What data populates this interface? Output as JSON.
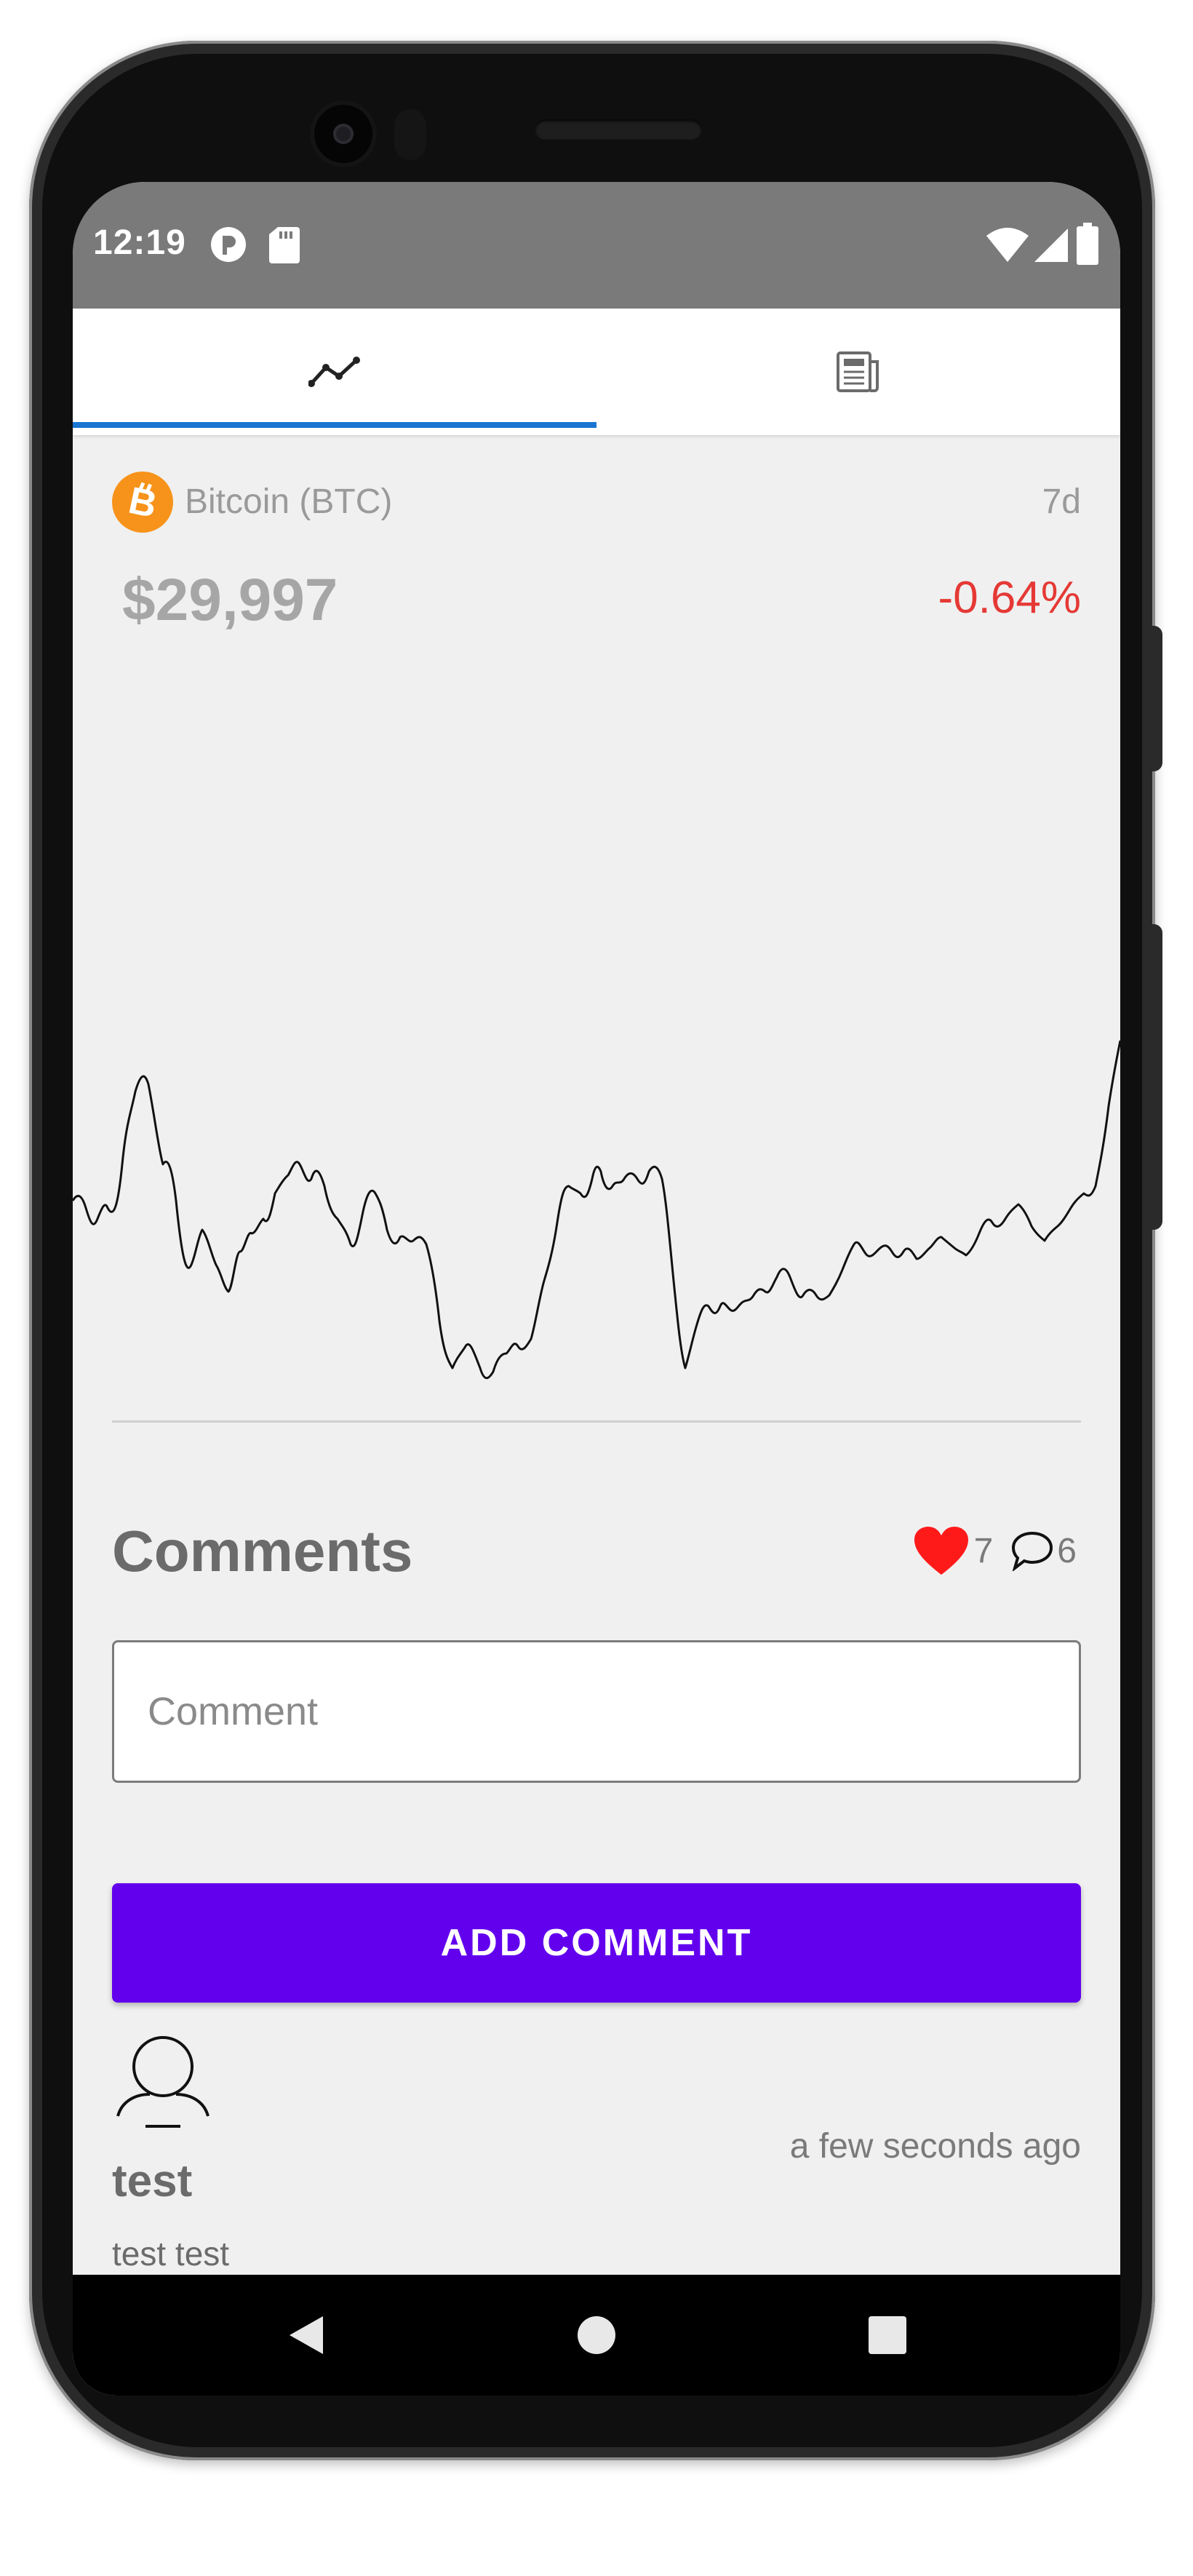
{
  "status_bar": {
    "time": "12:19"
  },
  "tabs": [
    {
      "name": "chart",
      "icon": "trending-line-icon",
      "selected": true
    },
    {
      "name": "news",
      "icon": "newspaper-icon",
      "selected": false
    }
  ],
  "coin": {
    "name": "Bitcoin (BTC)",
    "icon": "bitcoin-icon",
    "period": "7d",
    "price": "$29,997",
    "change": "-0.64%",
    "change_color": "#e53935"
  },
  "comments": {
    "title": "Comments",
    "likes": "7",
    "comment_count": "6",
    "input_placeholder": "Comment",
    "add_button": "ADD COMMENT",
    "items": [
      {
        "user": "test",
        "text": "test test",
        "time": "a few seconds ago"
      }
    ]
  },
  "colors": {
    "accent": "#6200ee",
    "tab_indicator": "#1976d2",
    "coin": "#f7931a",
    "heart": "#ff1a1a"
  }
}
